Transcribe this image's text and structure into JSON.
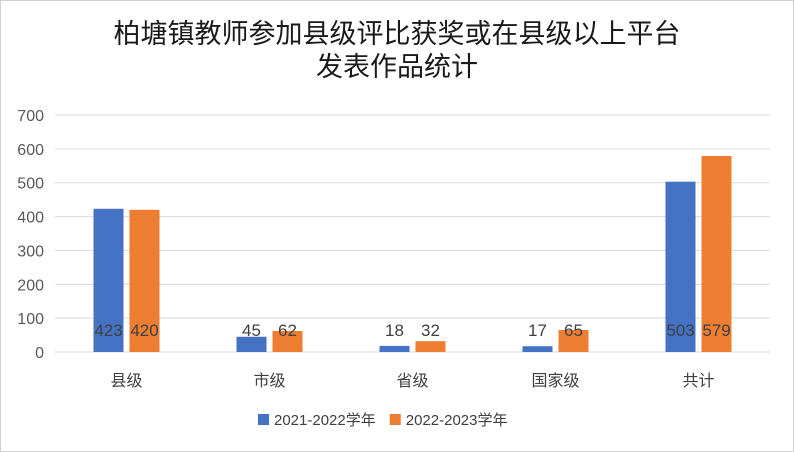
{
  "chart_data": {
    "type": "bar",
    "title_lines": [
      "柏塘镇教师参加县级评比获奖或在县级以上平台",
      "发表作品统计"
    ],
    "categories": [
      "县级",
      "市级",
      "省级",
      "国家级",
      "共计"
    ],
    "series": [
      {
        "name": "2021-2022学年",
        "color": "#4472C4",
        "values": [
          423,
          45,
          18,
          17,
          503
        ]
      },
      {
        "name": "2022-2023学年",
        "color": "#ED7D31",
        "values": [
          420,
          62,
          32,
          65,
          579
        ]
      }
    ],
    "yticks": [
      0,
      100,
      200,
      300,
      400,
      500,
      600,
      700
    ],
    "ylim": [
      0,
      700
    ],
    "grid": true,
    "legend": "bottom",
    "data_labels": true
  }
}
